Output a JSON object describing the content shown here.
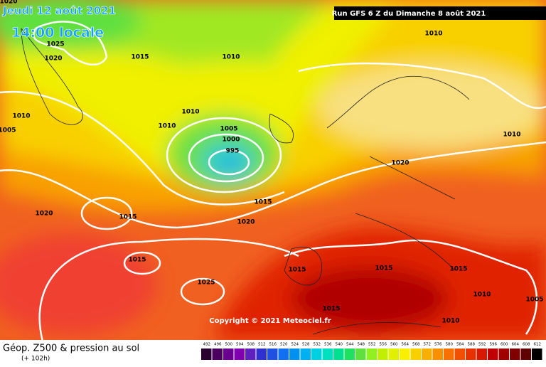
{
  "header": {
    "date": "Jeudi 12 août 2021",
    "time": "14:00 locale",
    "run": "Run GFS 6 Z du Dimanche 8 août 2021"
  },
  "isobar_labels": [
    1020,
    1025,
    1020,
    1015,
    1010,
    1010,
    1010,
    1005,
    1010,
    1010,
    1005,
    1000,
    995,
    1020,
    1010,
    1015,
    1020,
    1015,
    1020,
    1015,
    1015,
    1015,
    1015,
    1025,
    1010,
    1005,
    1015,
    1010
  ],
  "copyright": "Copyright © 2021 Meteociel.fr",
  "footer": {
    "title": "Géop. Z500 & pression au sol",
    "lead": "(+ 102h)"
  },
  "legend": {
    "labels": [
      492,
      496,
      500,
      504,
      508,
      512,
      516,
      520,
      524,
      528,
      532,
      536,
      540,
      544,
      548,
      552,
      556,
      560,
      564,
      568,
      572,
      576,
      580,
      584,
      588,
      592,
      596,
      600,
      604,
      608,
      612
    ],
    "colors": [
      "#2a0030",
      "#4b0060",
      "#6a0090",
      "#8000b0",
      "#6020c0",
      "#3030d0",
      "#2050e0",
      "#1070f0",
      "#0090f0",
      "#00b0f0",
      "#00d0e0",
      "#00e0c0",
      "#00e090",
      "#20e060",
      "#60e040",
      "#90f020",
      "#c0f000",
      "#e0f000",
      "#f8f000",
      "#f8d000",
      "#f8b000",
      "#f89000",
      "#f87000",
      "#f05000",
      "#e83000",
      "#d81800",
      "#c00000",
      "#a00000",
      "#800000",
      "#600000",
      "#000000"
    ]
  }
}
